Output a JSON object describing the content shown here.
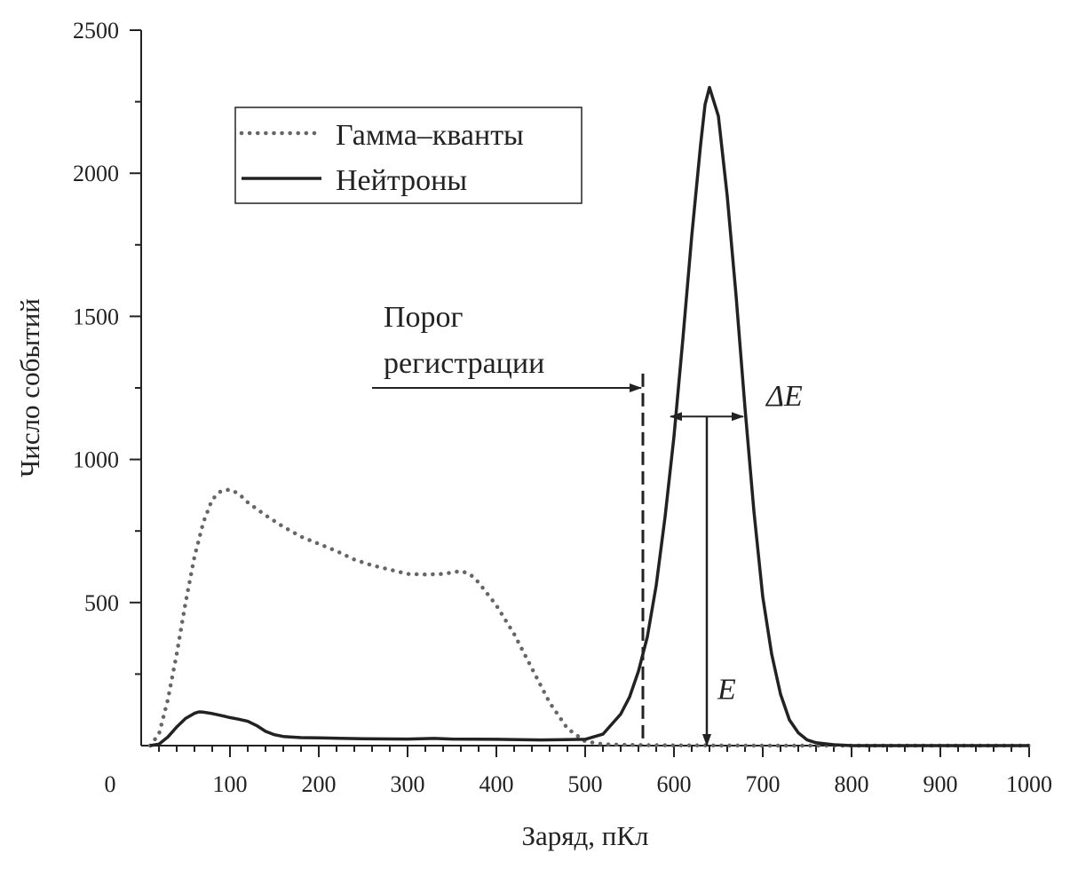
{
  "chart_data": {
    "type": "line",
    "xlabel": "Заряд, пКл",
    "ylabel": "Число событий",
    "xlim": [
      0,
      1000
    ],
    "ylim": [
      0,
      2500
    ],
    "x_ticks": [
      "100",
      "200",
      "300",
      "400",
      "500",
      "600",
      "700",
      "800",
      "900",
      "1000"
    ],
    "y_ticks": [
      "500",
      "1000",
      "1500",
      "2000",
      "2500"
    ],
    "origin_label": "0",
    "grid": false,
    "legend_position": "top-left",
    "series": [
      {
        "name": "Гамма–кванты",
        "style": "dotted",
        "color": "#666666",
        "x": [
          10,
          20,
          30,
          40,
          50,
          60,
          70,
          80,
          90,
          100,
          110,
          120,
          140,
          160,
          180,
          200,
          220,
          240,
          260,
          280,
          300,
          320,
          340,
          360,
          370,
          380,
          400,
          420,
          440,
          460,
          480,
          500,
          520,
          540,
          560,
          600,
          700,
          800,
          900,
          1000
        ],
        "y": [
          0,
          40,
          160,
          320,
          500,
          660,
          780,
          860,
          890,
          895,
          880,
          850,
          805,
          765,
          730,
          705,
          680,
          650,
          630,
          615,
          600,
          598,
          600,
          610,
          600,
          570,
          490,
          390,
          270,
          150,
          60,
          15,
          5,
          3,
          2,
          1,
          0,
          0,
          0,
          0
        ]
      },
      {
        "name": "Нейтроны",
        "style": "solid",
        "color": "#222222",
        "x": [
          10,
          20,
          30,
          40,
          50,
          60,
          65,
          70,
          80,
          90,
          100,
          110,
          120,
          130,
          140,
          150,
          160,
          180,
          200,
          250,
          300,
          330,
          350,
          400,
          450,
          500,
          520,
          540,
          550,
          560,
          570,
          580,
          590,
          600,
          610,
          620,
          630,
          635,
          640,
          650,
          660,
          670,
          680,
          690,
          700,
          710,
          720,
          730,
          740,
          750,
          760,
          780,
          800,
          900,
          1000
        ],
        "y": [
          0,
          5,
          30,
          65,
          95,
          113,
          118,
          117,
          112,
          105,
          98,
          92,
          85,
          70,
          50,
          38,
          32,
          28,
          27,
          24,
          23,
          25,
          23,
          22,
          20,
          22,
          40,
          110,
          170,
          260,
          380,
          560,
          800,
          1080,
          1420,
          1780,
          2100,
          2240,
          2300,
          2200,
          1920,
          1570,
          1180,
          820,
          520,
          320,
          180,
          90,
          45,
          20,
          10,
          3,
          0,
          0,
          0
        ]
      }
    ],
    "annotations": {
      "threshold_line1": "Порог",
      "threshold_line2": "регистрации",
      "threshold_x": 565,
      "threshold_top": 1300,
      "arrow_from_x": 260,
      "arrow_y": 1250,
      "peak_label": "E",
      "peak_x": 637,
      "peak_value": 1150,
      "width_label": "ΔE",
      "width_x_left": 596,
      "width_x_right": 678,
      "width_y": 1150
    }
  }
}
